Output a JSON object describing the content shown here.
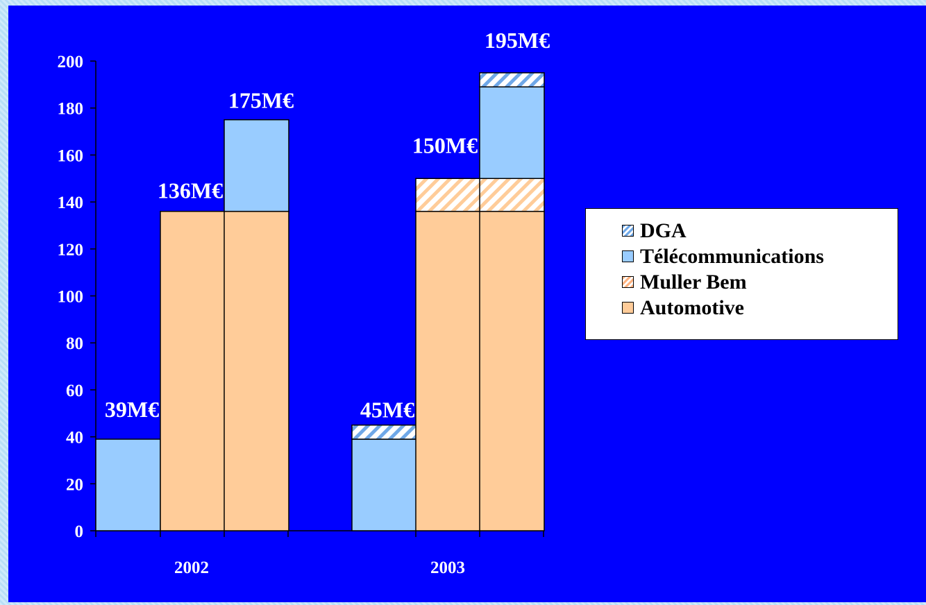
{
  "colors": {
    "background": "#0000ff",
    "automotive": "#ffcc99",
    "telecom": "#99ccff",
    "hatch_line_muller": "#ff9f6b",
    "hatch_line_dga": "#3b6fd6",
    "text": "#ffffff"
  },
  "legend": {
    "items": [
      {
        "label": "DGA",
        "pattern": "hatch-blue"
      },
      {
        "label": "Télécommunications",
        "pattern": "solid-blue"
      },
      {
        "label": "Muller Bem",
        "pattern": "hatch-orange"
      },
      {
        "label": "Automotive",
        "pattern": "solid-orange"
      }
    ]
  },
  "chart_data": {
    "type": "bar",
    "subtype": "stacked",
    "title": "",
    "xlabel": "",
    "ylabel": "",
    "ylim": [
      0,
      200
    ],
    "yticks": [
      0,
      20,
      40,
      60,
      80,
      100,
      120,
      140,
      160,
      180,
      200
    ],
    "grid": false,
    "legend_position": "right",
    "categories": [
      "2002",
      "2003"
    ],
    "bars": [
      {
        "category": "2002",
        "stack": {
          "Télécommunications": 39
        },
        "label": "39M€"
      },
      {
        "category": "2002",
        "stack": {
          "Automotive": 136
        },
        "label": "136M€"
      },
      {
        "category": "2002",
        "stack": {
          "Automotive": 136,
          "Télécommunications": 39
        },
        "label": "175M€"
      },
      {
        "category": "2003",
        "stack": {
          "Télécommunications": 39,
          "DGA": 6
        },
        "label": "45M€"
      },
      {
        "category": "2003",
        "stack": {
          "Automotive": 136,
          "Muller Bem": 14
        },
        "label": "150M€"
      },
      {
        "category": "2003",
        "stack": {
          "Automotive": 136,
          "Muller Bem": 14,
          "Télécommunications": 39,
          "DGA": 6
        },
        "label": "195M€"
      }
    ],
    "series_order": [
      "Automotive",
      "Muller Bem",
      "Télécommunications",
      "DGA"
    ]
  }
}
